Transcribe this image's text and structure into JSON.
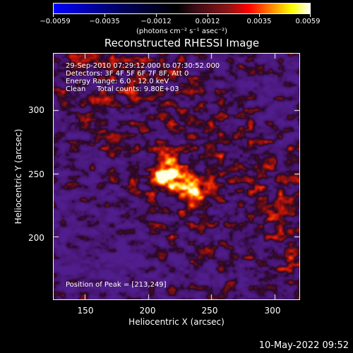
{
  "colorbar": {
    "ticks": [
      "−0.0059",
      "−0.0035",
      "−0.0012",
      "0.0012",
      "0.0035",
      "0.0059"
    ],
    "units": "(photons cm⁻² s⁻¹ asec⁻²)"
  },
  "title": "Reconstructed RHESSI Image",
  "overlay": {
    "time": "29-Sep-2010 07:29:12.000 to 07:30:52.000",
    "detectors": "Detectors: 3F 4F 5F 6F 7F 8F, Att 0",
    "energy": "Energy Range: 6.0 - 12.0 keV",
    "clean": "Clean     Total counts: 9.80E+03",
    "peak": "Position of Peak = [213,249]"
  },
  "axes": {
    "xlabel": "Heliocentric X (arcsec)",
    "ylabel": "Heliocentric Y (arcsec)",
    "xticks": [
      "150",
      "200",
      "250",
      "300"
    ],
    "yticks": [
      "300",
      "250",
      "200"
    ]
  },
  "date": "10-May-2022 09:52",
  "image_data": {
    "xrange": [
      125,
      320
    ],
    "yrange": [
      150,
      345
    ],
    "peak": [
      213,
      249
    ],
    "colors": {
      "neg": "#0000ff",
      "zero": "#000000",
      "low": "#5a1f7a",
      "mid": "#ff0000",
      "high": "#ffff00",
      "max": "#ffffff"
    }
  }
}
